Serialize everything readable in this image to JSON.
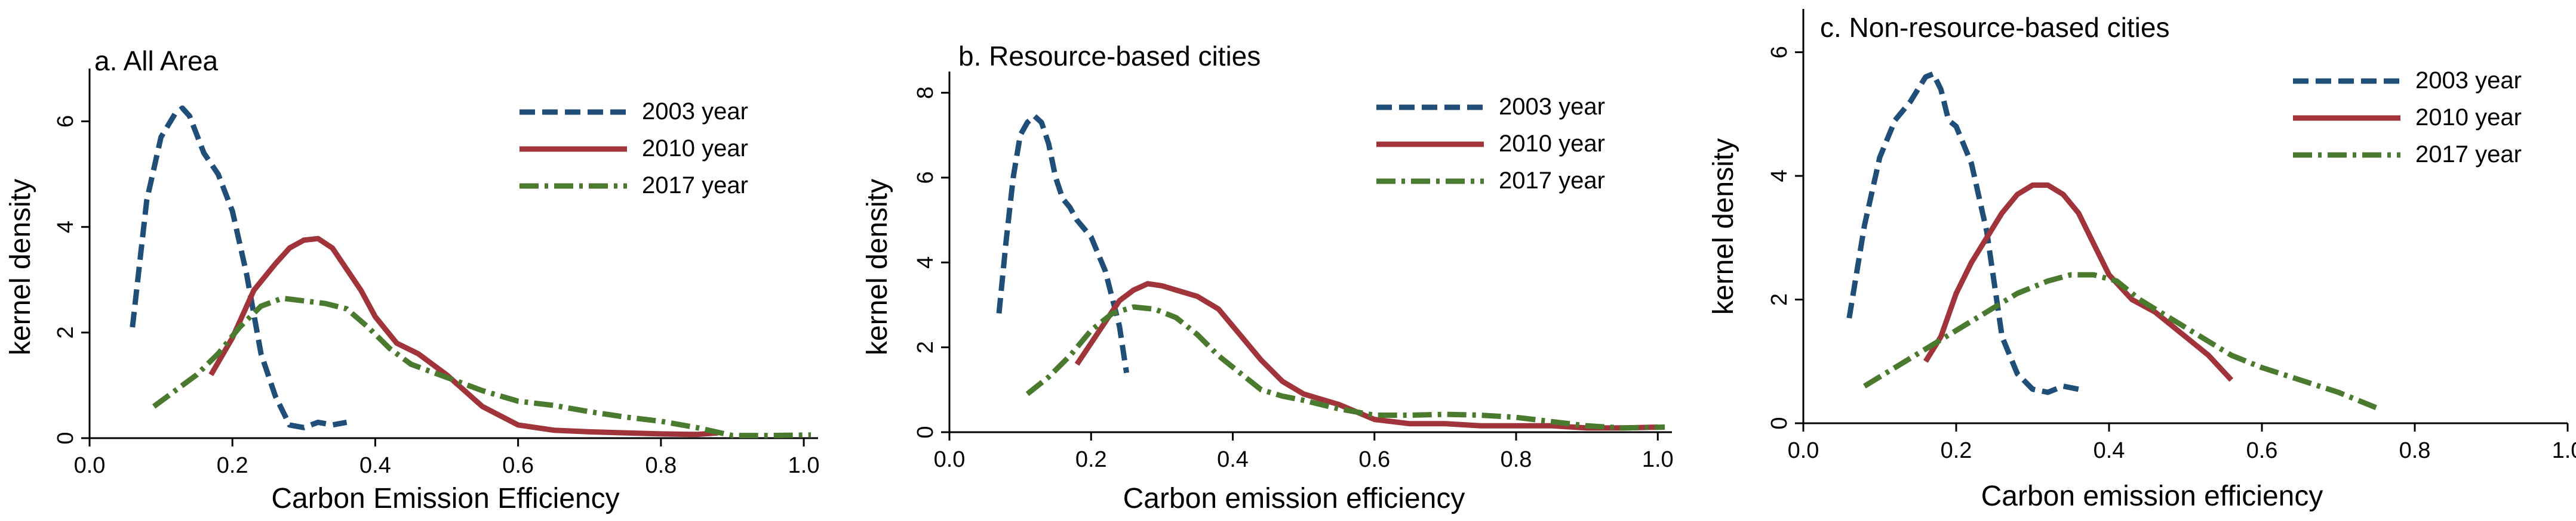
{
  "colors": {
    "s2003": "#1f4e79",
    "s2010": "#a0343a",
    "s2017": "#4a7a2e",
    "axis": "#000000",
    "background": "#ffffff"
  },
  "chart_data": [
    {
      "type": "line",
      "title": "a. All Area",
      "xlabel": "Carbon Emission Efficiency",
      "ylabel": "kernel density",
      "xlim": [
        0,
        1.02
      ],
      "ylim": [
        0,
        7
      ],
      "xticks": [
        0,
        0.2,
        0.4,
        0.6,
        0.8,
        1.0
      ],
      "xtick_labels": [
        "0.0",
        "0.2",
        "0.4",
        "0.6",
        "0.8",
        "1.0"
      ],
      "yticks": [
        0,
        2,
        4,
        6
      ],
      "ytick_labels": [
        "0",
        "2",
        "4",
        "6"
      ],
      "grid": false,
      "legend": "top-right",
      "series": [
        {
          "name": "2003 year",
          "dash": "dash",
          "x": [
            0.06,
            0.08,
            0.1,
            0.12,
            0.13,
            0.14,
            0.16,
            0.18,
            0.2,
            0.22,
            0.24,
            0.26,
            0.28,
            0.3,
            0.32,
            0.34,
            0.36
          ],
          "y": [
            2.1,
            4.5,
            5.7,
            6.15,
            6.25,
            6.1,
            5.4,
            5.0,
            4.3,
            3.1,
            1.6,
            0.8,
            0.25,
            0.2,
            0.3,
            0.25,
            0.3
          ]
        },
        {
          "name": "2010 year",
          "dash": "solid",
          "x": [
            0.17,
            0.2,
            0.23,
            0.26,
            0.28,
            0.3,
            0.32,
            0.34,
            0.36,
            0.38,
            0.4,
            0.43,
            0.46,
            0.5,
            0.55,
            0.6,
            0.65,
            0.7,
            0.75,
            0.8,
            0.85,
            0.88
          ],
          "y": [
            1.2,
            1.9,
            2.8,
            3.3,
            3.6,
            3.75,
            3.78,
            3.6,
            3.2,
            2.8,
            2.3,
            1.8,
            1.6,
            1.2,
            0.6,
            0.25,
            0.15,
            0.12,
            0.1,
            0.08,
            0.07,
            0.1
          ]
        },
        {
          "name": "2017 year",
          "dash": "dashdot",
          "x": [
            0.09,
            0.12,
            0.15,
            0.18,
            0.21,
            0.24,
            0.27,
            0.3,
            0.33,
            0.36,
            0.39,
            0.42,
            0.45,
            0.5,
            0.55,
            0.6,
            0.65,
            0.7,
            0.75,
            0.8,
            0.85,
            0.9,
            0.95,
            1.01
          ],
          "y": [
            0.6,
            0.9,
            1.2,
            1.6,
            2.1,
            2.5,
            2.65,
            2.6,
            2.55,
            2.45,
            2.1,
            1.7,
            1.4,
            1.15,
            0.9,
            0.7,
            0.62,
            0.5,
            0.4,
            0.32,
            0.2,
            0.05,
            0.05,
            0.06
          ]
        }
      ]
    },
    {
      "type": "line",
      "title": "b. Resource-based cities",
      "xlabel": "Carbon emission efficiency",
      "ylabel": "kernel density",
      "xlim": [
        0,
        1.02
      ],
      "ylim": [
        0,
        8.5
      ],
      "xticks": [
        0,
        0.2,
        0.4,
        0.6,
        0.8,
        1.0
      ],
      "xtick_labels": [
        "0.0",
        "0.2",
        "0.4",
        "0.6",
        "0.8",
        "1.0"
      ],
      "yticks": [
        0,
        2,
        4,
        6,
        8
      ],
      "ytick_labels": [
        "0",
        "2",
        "4",
        "6",
        "8"
      ],
      "grid": false,
      "legend": "top-right",
      "series": [
        {
          "name": "2003 year",
          "dash": "dash",
          "x": [
            0.07,
            0.08,
            0.09,
            0.1,
            0.11,
            0.12,
            0.13,
            0.14,
            0.15,
            0.16,
            0.17,
            0.18,
            0.2,
            0.22,
            0.24,
            0.25
          ],
          "y": [
            2.8,
            4.5,
            6.0,
            7.0,
            7.3,
            7.45,
            7.3,
            6.8,
            6.0,
            5.5,
            5.3,
            5.0,
            4.6,
            3.8,
            2.5,
            1.4
          ]
        },
        {
          "name": "2010 year",
          "dash": "solid",
          "x": [
            0.18,
            0.2,
            0.22,
            0.24,
            0.26,
            0.28,
            0.3,
            0.32,
            0.35,
            0.38,
            0.41,
            0.44,
            0.47,
            0.5,
            0.55,
            0.6,
            0.65,
            0.7,
            0.75,
            0.8,
            0.85,
            0.9,
            0.95,
            1.0
          ],
          "y": [
            1.6,
            2.1,
            2.6,
            3.1,
            3.35,
            3.5,
            3.45,
            3.35,
            3.2,
            2.9,
            2.3,
            1.7,
            1.2,
            0.9,
            0.65,
            0.3,
            0.2,
            0.2,
            0.15,
            0.15,
            0.15,
            0.1,
            0.1,
            0.12
          ]
        },
        {
          "name": "2017 year",
          "dash": "dashdot",
          "x": [
            0.11,
            0.14,
            0.17,
            0.2,
            0.23,
            0.26,
            0.29,
            0.32,
            0.35,
            0.38,
            0.41,
            0.44,
            0.47,
            0.5,
            0.55,
            0.6,
            0.65,
            0.7,
            0.75,
            0.8,
            0.85,
            0.9,
            0.95,
            1.01
          ],
          "y": [
            0.9,
            1.3,
            1.8,
            2.4,
            2.8,
            2.95,
            2.9,
            2.7,
            2.3,
            1.8,
            1.4,
            1.0,
            0.85,
            0.75,
            0.55,
            0.4,
            0.4,
            0.42,
            0.4,
            0.35,
            0.25,
            0.15,
            0.1,
            0.12
          ]
        }
      ]
    },
    {
      "type": "line",
      "title": "c. Non-resource-based cities",
      "xlabel": "Carbon emission efficiency",
      "ylabel": "kernel density",
      "xlim": [
        0,
        1.0
      ],
      "ylim": [
        0,
        6.7
      ],
      "xticks": [
        0,
        0.2,
        0.4,
        0.6,
        0.8,
        1.0
      ],
      "xtick_labels": [
        "0.0",
        "0.2",
        "0.4",
        "0.6",
        "0.8",
        "1.0"
      ],
      "yticks": [
        0,
        2,
        4,
        6
      ],
      "ytick_labels": [
        "0",
        "2",
        "4",
        "6"
      ],
      "grid": false,
      "legend": "top-right",
      "series": [
        {
          "name": "2003 year",
          "dash": "dash",
          "x": [
            0.06,
            0.08,
            0.1,
            0.12,
            0.14,
            0.16,
            0.17,
            0.18,
            0.19,
            0.2,
            0.22,
            0.24,
            0.26,
            0.28,
            0.3,
            0.32,
            0.34,
            0.36
          ],
          "y": [
            1.7,
            3.2,
            4.3,
            4.9,
            5.2,
            5.6,
            5.65,
            5.4,
            4.9,
            4.8,
            4.2,
            3.1,
            1.4,
            0.8,
            0.55,
            0.5,
            0.6,
            0.55
          ]
        },
        {
          "name": "2010 year",
          "dash": "solid",
          "x": [
            0.16,
            0.18,
            0.2,
            0.22,
            0.24,
            0.26,
            0.28,
            0.3,
            0.32,
            0.34,
            0.36,
            0.38,
            0.4,
            0.43,
            0.46,
            0.5,
            0.53,
            0.56
          ],
          "y": [
            1.0,
            1.4,
            2.1,
            2.6,
            3.0,
            3.4,
            3.7,
            3.85,
            3.85,
            3.7,
            3.4,
            2.9,
            2.4,
            2.0,
            1.8,
            1.4,
            1.1,
            0.7
          ]
        },
        {
          "name": "2017 year",
          "dash": "dashdot",
          "x": [
            0.08,
            0.12,
            0.16,
            0.2,
            0.24,
            0.28,
            0.32,
            0.35,
            0.38,
            0.41,
            0.44,
            0.48,
            0.52,
            0.56,
            0.6,
            0.65,
            0.7,
            0.75
          ],
          "y": [
            0.6,
            0.9,
            1.2,
            1.5,
            1.8,
            2.1,
            2.3,
            2.4,
            2.4,
            2.3,
            2.0,
            1.7,
            1.4,
            1.1,
            0.9,
            0.7,
            0.5,
            0.25
          ]
        }
      ]
    }
  ]
}
